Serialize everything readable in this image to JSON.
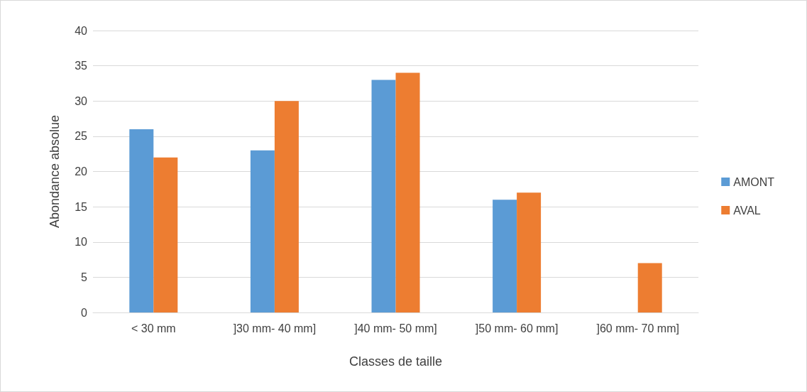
{
  "chart_data": {
    "type": "bar",
    "xlabel": "Classes de taille",
    "ylabel": "Abondance absolue",
    "categories": [
      "< 30 mm",
      "]30 mm- 40 mm]",
      "]40 mm- 50 mm]",
      "]50 mm- 60 mm]",
      "]60 mm- 70 mm]"
    ],
    "series": [
      {
        "name": "AMONT",
        "color": "#5b9bd5",
        "values": [
          26,
          23,
          33,
          16,
          0
        ]
      },
      {
        "name": "AVAL",
        "color": "#ed7d31",
        "values": [
          22,
          30,
          34,
          17,
          7
        ]
      }
    ],
    "ylim": [
      0,
      40
    ],
    "yticks": [
      0,
      5,
      10,
      15,
      20,
      25,
      30,
      35,
      40
    ],
    "grid": "y",
    "legend": "right"
  }
}
